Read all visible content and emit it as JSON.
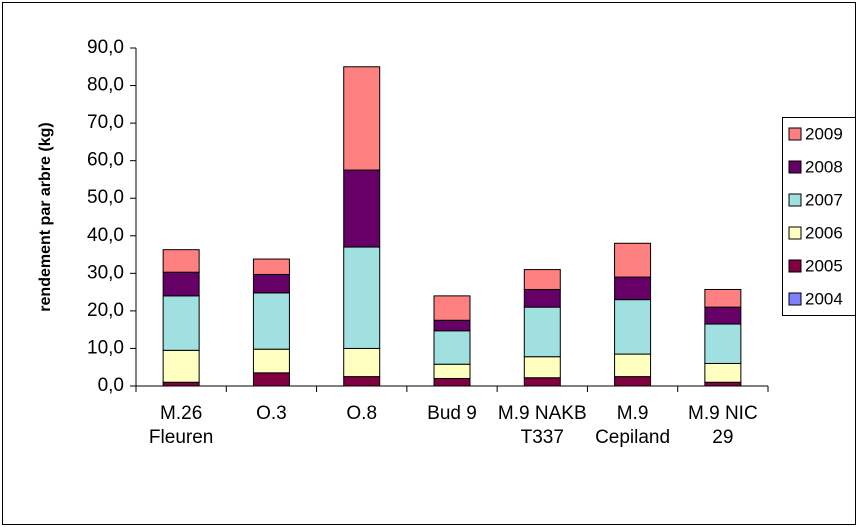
{
  "chart_data": {
    "type": "bar",
    "stacked": true,
    "y_label": "rendement par arbre (kg)",
    "categories": [
      "M.26 Fleuren",
      "O.3",
      "O.8",
      "Bud 9",
      "M.9 NAKB T337",
      "M.9 Cepiland",
      "M.9 NIC 29"
    ],
    "series": [
      {
        "name": "2004",
        "color": "#8080ff",
        "values": [
          0,
          0,
          0,
          0,
          0,
          0,
          0
        ]
      },
      {
        "name": "2005",
        "color": "#800040",
        "values": [
          1,
          3.5,
          2.5,
          2,
          2.2,
          2.5,
          1
        ]
      },
      {
        "name": "2006",
        "color": "#ffffc0",
        "values": [
          8.5,
          6.3,
          7.5,
          3.8,
          5.6,
          6,
          5
        ]
      },
      {
        "name": "2007",
        "color": "#a0e0e0",
        "values": [
          14.5,
          15,
          27,
          8.9,
          13.2,
          14.5,
          10.5
        ]
      },
      {
        "name": "2008",
        "color": "#660066",
        "values": [
          6.3,
          4.9,
          20.5,
          2.8,
          4.7,
          6,
          4.5
        ]
      },
      {
        "name": "2009",
        "color": "#ff8080",
        "values": [
          6,
          4.1,
          27.5,
          6.5,
          5.3,
          9,
          4.7
        ]
      }
    ],
    "ylim": [
      0,
      90
    ],
    "yticks": [
      {
        "value": 0,
        "label": "0,0"
      },
      {
        "value": 10,
        "label": "10,0"
      },
      {
        "value": 20,
        "label": "20,0"
      },
      {
        "value": 30,
        "label": "30,0"
      },
      {
        "value": 40,
        "label": "40,0"
      },
      {
        "value": 50,
        "label": "50,0"
      },
      {
        "value": 60,
        "label": "60,0"
      },
      {
        "value": 70,
        "label": "70,0"
      },
      {
        "value": 80,
        "label": "80,0"
      },
      {
        "value": 90,
        "label": "90,0"
      }
    ],
    "legend": "right",
    "grid": false
  }
}
